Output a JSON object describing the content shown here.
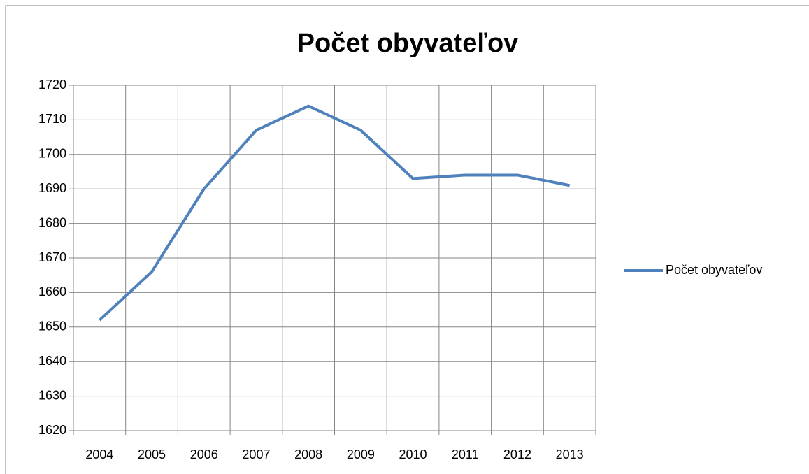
{
  "chart_data": {
    "type": "line",
    "title": "Počet obyvateľov",
    "categories": [
      "2004",
      "2005",
      "2006",
      "2007",
      "2008",
      "2009",
      "2010",
      "2011",
      "2012",
      "2013"
    ],
    "series": [
      {
        "name": "Počet obyvateľov",
        "color": "#4f81bd",
        "values": [
          1652,
          1666,
          1690,
          1707,
          1714,
          1707,
          1693,
          1694,
          1694,
          1691
        ]
      }
    ],
    "ylim": [
      1620,
      1720
    ],
    "yticks": [
      1620,
      1630,
      1640,
      1650,
      1660,
      1670,
      1680,
      1690,
      1700,
      1710,
      1720
    ],
    "grid": true,
    "legend": "right"
  }
}
